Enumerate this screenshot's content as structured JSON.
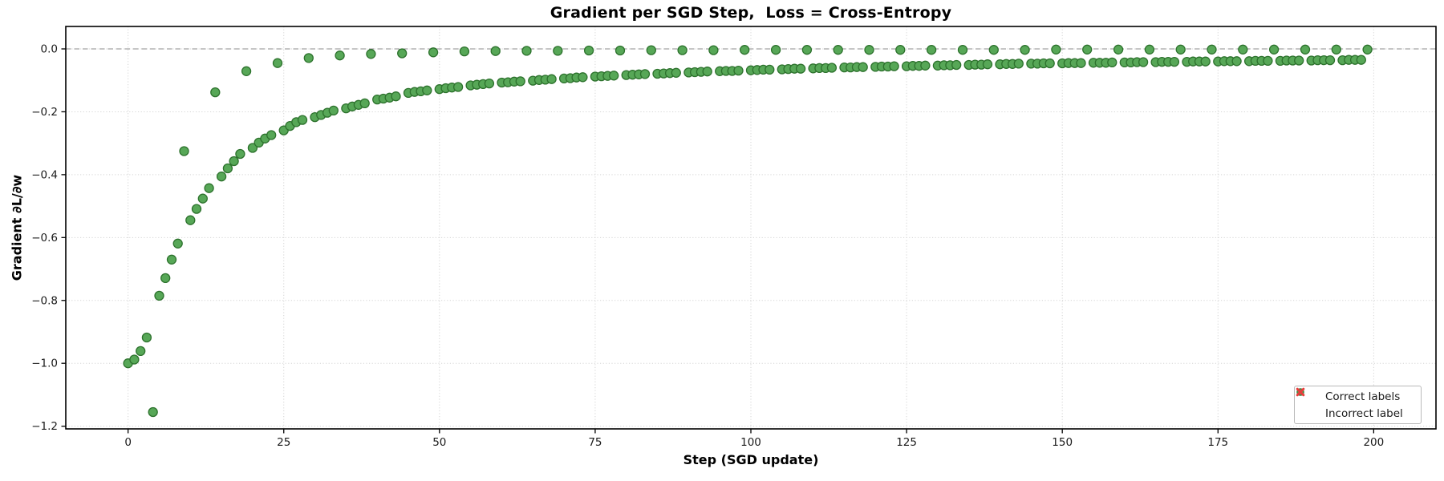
{
  "figure": {
    "title": "Gradient per SGD Step,  Loss = Cross-Entropy",
    "xlabel": "Step (SGD update)",
    "ylabel": "Gradient ∂L/∂w"
  },
  "legend": {
    "position": "lower right",
    "entries": [
      {
        "label": "Correct labels",
        "marker": "circle",
        "color": "#57a757",
        "edge": "#2d722d"
      },
      {
        "label": "Incorrect label",
        "marker": "x",
        "color": "#e83c3c",
        "edge": "#e83c3c"
      }
    ]
  },
  "chart_data": {
    "type": "scatter",
    "title": "Gradient per SGD Step,  Loss = Cross-Entropy",
    "xlabel": "Step (SGD update)",
    "ylabel": "Gradient ∂L/∂w",
    "xlim": [
      -10,
      210
    ],
    "ylim": [
      -1.2086,
      0.0714
    ],
    "grid": true,
    "grid_color": "#d4d4d4",
    "zero_line": {
      "y": 0,
      "color": "#8c8c8c",
      "style": "dashed"
    },
    "spine_color": "#000000",
    "tick_color": "#1a1a1a",
    "xticks": [
      {
        "v": 0,
        "label": "0"
      },
      {
        "v": 25,
        "label": "25"
      },
      {
        "v": 50,
        "label": "50"
      },
      {
        "v": 75,
        "label": "75"
      },
      {
        "v": 100,
        "label": "100"
      },
      {
        "v": 125,
        "label": "125"
      },
      {
        "v": 150,
        "label": "150"
      },
      {
        "v": 175,
        "label": "175"
      },
      {
        "v": 200,
        "label": "200"
      }
    ],
    "yticks": [
      {
        "v": 0.0,
        "label": "0.0"
      },
      {
        "v": -0.2,
        "label": "−0.2"
      },
      {
        "v": -0.4,
        "label": "−0.4"
      },
      {
        "v": -0.6,
        "label": "−0.6"
      },
      {
        "v": -0.8,
        "label": "−0.8"
      },
      {
        "v": -1.0,
        "label": "−1.0"
      },
      {
        "v": -1.2,
        "label": "−1.2"
      }
    ],
    "series": [
      {
        "name": "Correct labels",
        "marker": "circle",
        "size": 5.5,
        "fill": "#57a757",
        "edge": "#2d722d",
        "points": [
          [
            0,
            -1.0
          ],
          [
            1,
            -0.988
          ],
          [
            2,
            -0.961
          ],
          [
            3,
            -0.918
          ],
          [
            4,
            -1.155
          ],
          [
            5,
            -0.785
          ],
          [
            6,
            -0.729
          ],
          [
            7,
            -0.67
          ],
          [
            8,
            -0.619
          ],
          [
            9,
            -0.325
          ],
          [
            10,
            -0.545
          ],
          [
            11,
            -0.509
          ],
          [
            12,
            -0.476
          ],
          [
            13,
            -0.443
          ],
          [
            14,
            -0.138
          ],
          [
            15,
            -0.406
          ],
          [
            16,
            -0.38
          ],
          [
            17,
            -0.357
          ],
          [
            18,
            -0.334
          ],
          [
            19,
            -0.071
          ],
          [
            20,
            -0.315
          ],
          [
            21,
            -0.298
          ],
          [
            22,
            -0.285
          ],
          [
            23,
            -0.274
          ],
          [
            24,
            -0.045
          ],
          [
            25,
            -0.259
          ],
          [
            26,
            -0.245
          ],
          [
            27,
            -0.233
          ],
          [
            28,
            -0.226
          ],
          [
            29,
            -0.029
          ],
          [
            30,
            -0.217
          ],
          [
            31,
            -0.21
          ],
          [
            32,
            -0.203
          ],
          [
            33,
            -0.196
          ],
          [
            34,
            -0.021
          ],
          [
            35,
            -0.189
          ],
          [
            36,
            -0.183
          ],
          [
            37,
            -0.178
          ],
          [
            38,
            -0.173
          ],
          [
            39,
            -0.016
          ],
          [
            40,
            -0.161
          ],
          [
            41,
            -0.158
          ],
          [
            42,
            -0.155
          ],
          [
            43,
            -0.151
          ],
          [
            44,
            -0.014
          ],
          [
            45,
            -0.14
          ],
          [
            46,
            -0.137
          ],
          [
            47,
            -0.135
          ],
          [
            48,
            -0.132
          ],
          [
            49,
            -0.011
          ],
          [
            50,
            -0.128
          ],
          [
            51,
            -0.125
          ],
          [
            52,
            -0.123
          ],
          [
            53,
            -0.121
          ],
          [
            54,
            -0.008
          ],
          [
            55,
            -0.116
          ],
          [
            56,
            -0.114
          ],
          [
            57,
            -0.112
          ],
          [
            58,
            -0.11
          ],
          [
            59,
            -0.007
          ],
          [
            60,
            -0.107
          ],
          [
            61,
            -0.106
          ],
          [
            62,
            -0.104
          ],
          [
            63,
            -0.103
          ],
          [
            64,
            -0.006
          ],
          [
            65,
            -0.101
          ],
          [
            66,
            -0.099
          ],
          [
            67,
            -0.098
          ],
          [
            68,
            -0.096
          ],
          [
            69,
            -0.006
          ],
          [
            70,
            -0.094
          ],
          [
            71,
            -0.093
          ],
          [
            72,
            -0.091
          ],
          [
            73,
            -0.09
          ],
          [
            74,
            -0.005
          ],
          [
            75,
            -0.088
          ],
          [
            76,
            -0.087
          ],
          [
            77,
            -0.086
          ],
          [
            78,
            -0.085
          ],
          [
            79,
            -0.005
          ],
          [
            80,
            -0.083
          ],
          [
            81,
            -0.082
          ],
          [
            82,
            -0.081
          ],
          [
            83,
            -0.08
          ],
          [
            84,
            -0.004
          ],
          [
            85,
            -0.079
          ],
          [
            86,
            -0.078
          ],
          [
            87,
            -0.077
          ],
          [
            88,
            -0.076
          ],
          [
            89,
            -0.004
          ],
          [
            90,
            -0.075
          ],
          [
            91,
            -0.074
          ],
          [
            92,
            -0.073
          ],
          [
            93,
            -0.072
          ],
          [
            94,
            -0.004
          ],
          [
            95,
            -0.071
          ],
          [
            96,
            -0.07
          ],
          [
            97,
            -0.07
          ],
          [
            98,
            -0.069
          ],
          [
            99,
            -0.003
          ],
          [
            100,
            -0.068
          ],
          [
            101,
            -0.067
          ],
          [
            102,
            -0.066
          ],
          [
            103,
            -0.066
          ],
          [
            104,
            -0.003
          ],
          [
            105,
            -0.065
          ],
          [
            106,
            -0.064
          ],
          [
            107,
            -0.063
          ],
          [
            108,
            -0.063
          ],
          [
            109,
            -0.003
          ],
          [
            110,
            -0.062
          ],
          [
            111,
            -0.061
          ],
          [
            112,
            -0.061
          ],
          [
            113,
            -0.06
          ],
          [
            114,
            -0.003
          ],
          [
            115,
            -0.059
          ],
          [
            116,
            -0.059
          ],
          [
            117,
            -0.058
          ],
          [
            118,
            -0.058
          ],
          [
            119,
            -0.003
          ],
          [
            120,
            -0.057
          ],
          [
            121,
            -0.056
          ],
          [
            122,
            -0.056
          ],
          [
            123,
            -0.055
          ],
          [
            124,
            -0.003
          ],
          [
            125,
            -0.055
          ],
          [
            126,
            -0.054
          ],
          [
            127,
            -0.054
          ],
          [
            128,
            -0.053
          ],
          [
            129,
            -0.003
          ],
          [
            130,
            -0.053
          ],
          [
            131,
            -0.052
          ],
          [
            132,
            -0.052
          ],
          [
            133,
            -0.051
          ],
          [
            134,
            -0.003
          ],
          [
            135,
            -0.051
          ],
          [
            136,
            -0.05
          ],
          [
            137,
            -0.05
          ],
          [
            138,
            -0.049
          ],
          [
            139,
            -0.003
          ],
          [
            140,
            -0.049
          ],
          [
            141,
            -0.048
          ],
          [
            142,
            -0.048
          ],
          [
            143,
            -0.047
          ],
          [
            144,
            -0.003
          ],
          [
            145,
            -0.047
          ],
          [
            146,
            -0.047
          ],
          [
            147,
            -0.046
          ],
          [
            148,
            -0.046
          ],
          [
            149,
            -0.002
          ],
          [
            150,
            -0.046
          ],
          [
            151,
            -0.045
          ],
          [
            152,
            -0.045
          ],
          [
            153,
            -0.045
          ],
          [
            154,
            -0.002
          ],
          [
            155,
            -0.044
          ],
          [
            156,
            -0.044
          ],
          [
            157,
            -0.044
          ],
          [
            158,
            -0.043
          ],
          [
            159,
            -0.002
          ],
          [
            160,
            -0.043
          ],
          [
            161,
            -0.043
          ],
          [
            162,
            -0.042
          ],
          [
            163,
            -0.042
          ],
          [
            164,
            -0.002
          ],
          [
            165,
            -0.042
          ],
          [
            166,
            -0.041
          ],
          [
            167,
            -0.041
          ],
          [
            168,
            -0.041
          ],
          [
            169,
            -0.002
          ],
          [
            170,
            -0.041
          ],
          [
            171,
            -0.04
          ],
          [
            172,
            -0.04
          ],
          [
            173,
            -0.04
          ],
          [
            174,
            -0.002
          ],
          [
            175,
            -0.04
          ],
          [
            176,
            -0.039
          ],
          [
            177,
            -0.039
          ],
          [
            178,
            -0.039
          ],
          [
            179,
            -0.002
          ],
          [
            180,
            -0.039
          ],
          [
            181,
            -0.038
          ],
          [
            182,
            -0.038
          ],
          [
            183,
            -0.038
          ],
          [
            184,
            -0.002
          ],
          [
            185,
            -0.038
          ],
          [
            186,
            -0.037
          ],
          [
            187,
            -0.037
          ],
          [
            188,
            -0.037
          ],
          [
            189,
            -0.002
          ],
          [
            190,
            -0.037
          ],
          [
            191,
            -0.036
          ],
          [
            192,
            -0.036
          ],
          [
            193,
            -0.036
          ],
          [
            194,
            -0.002
          ],
          [
            195,
            -0.036
          ],
          [
            196,
            -0.035
          ],
          [
            197,
            -0.035
          ],
          [
            198,
            -0.035
          ],
          [
            199,
            -0.002
          ]
        ]
      },
      {
        "name": "Incorrect label",
        "marker": "x",
        "size": 6,
        "fill": "#e83c3c",
        "edge": "#e83c3c",
        "points": []
      }
    ]
  }
}
